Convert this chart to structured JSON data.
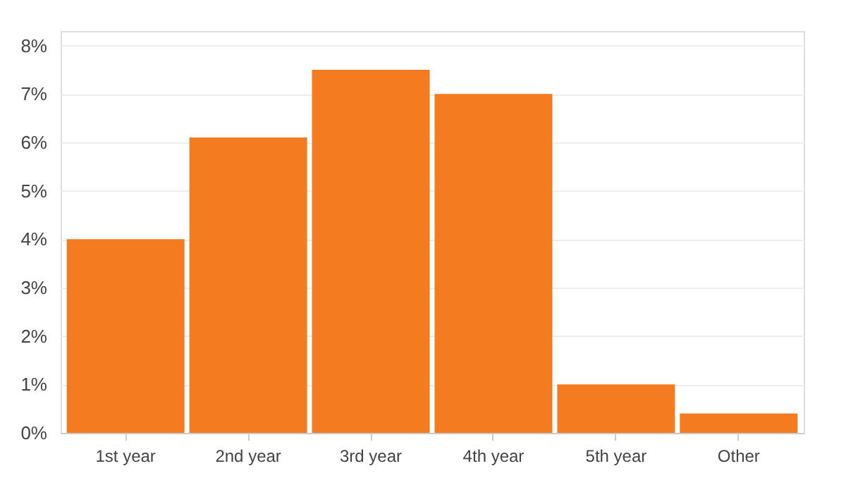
{
  "chart_data": {
    "type": "bar",
    "categories": [
      "1st year",
      "2nd year",
      "3rd year",
      "4th year",
      "5th year",
      "Other"
    ],
    "values": [
      4.0,
      6.1,
      7.5,
      7.0,
      1.0,
      0.4
    ],
    "color": "#f47b20",
    "ylim": [
      0,
      8.3
    ],
    "yticks": [
      {
        "value": 0,
        "label": "0%"
      },
      {
        "value": 1,
        "label": "1%"
      },
      {
        "value": 2,
        "label": "2%"
      },
      {
        "value": 3,
        "label": "3%"
      },
      {
        "value": 4,
        "label": "4%"
      },
      {
        "value": 5,
        "label": "5%"
      },
      {
        "value": 6,
        "label": "6%"
      },
      {
        "value": 7,
        "label": "7%"
      },
      {
        "value": 8,
        "label": "8%"
      }
    ],
    "grid": "y"
  }
}
